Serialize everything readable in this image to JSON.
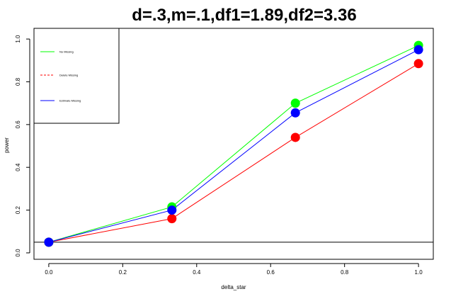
{
  "chart_data": {
    "type": "line",
    "title": "d=.3,m=.1,df1=1.89,df2=3.36",
    "xlabel": "delta_star",
    "ylabel": "power",
    "xlim": [
      -0.04,
      1.04
    ],
    "ylim": [
      -0.03,
      1.05
    ],
    "x_ticks": [
      "0.0",
      "0.2",
      "0.4",
      "0.6",
      "0.8",
      "1.0"
    ],
    "y_ticks": [
      "0.0",
      "0.2",
      "0.4",
      "0.6",
      "0.8",
      "1.0"
    ],
    "x": [
      0.0,
      0.333,
      0.667,
      1.0
    ],
    "reference_line": 0.05,
    "legend_placement": "top-left",
    "grid": false,
    "series": [
      {
        "name": "No Missing",
        "color": "#00ff00",
        "line_style": "solid",
        "values": [
          0.05,
          0.215,
          0.7,
          0.97
        ]
      },
      {
        "name": "Delete Missing",
        "color": "#ff0000",
        "line_style": "dashed",
        "values": [
          0.05,
          0.16,
          0.54,
          0.885
        ]
      },
      {
        "name": "Estimate Missing",
        "color": "#0000ff",
        "line_style": "solid",
        "values": [
          0.05,
          0.2,
          0.655,
          0.95
        ]
      }
    ]
  }
}
